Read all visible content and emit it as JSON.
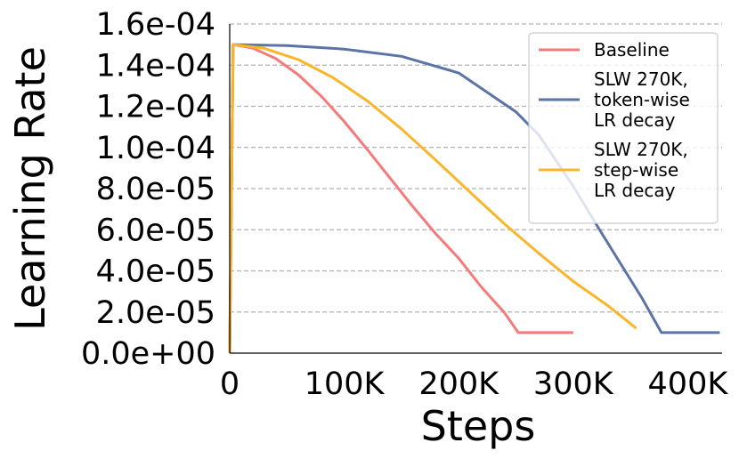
{
  "chart_data": {
    "type": "line",
    "xlabel": "Steps",
    "ylabel": "Learning Rate",
    "xlim": [
      0,
      430000
    ],
    "ylim": [
      0,
      0.00016
    ],
    "x_ticks": [
      0,
      100000,
      200000,
      300000,
      400000
    ],
    "x_tick_labels": [
      "0",
      "100K",
      "200K",
      "300K",
      "400K"
    ],
    "y_ticks": [
      0,
      2e-05,
      4e-05,
      6e-05,
      8e-05,
      0.0001,
      0.00012,
      0.00014,
      0.00016
    ],
    "y_tick_labels": [
      "0.0e+00",
      "2.0e-05",
      "4.0e-05",
      "6.0e-05",
      "8.0e-05",
      "1.0e-04",
      "1.2e-04",
      "1.4e-04",
      "1.6e-04"
    ],
    "grid": "y-dashed",
    "legend_position": "top-right",
    "series": [
      {
        "name": "Baseline",
        "color": "#f77a7a",
        "x": [
          0,
          3000,
          20000,
          40000,
          60000,
          80000,
          100000,
          120000,
          140000,
          160000,
          180000,
          200000,
          220000,
          240000,
          252000,
          270000,
          300000
        ],
        "y": [
          0,
          0.00015,
          0.0001483,
          0.0001433,
          0.0001353,
          0.0001249,
          0.0001126,
          9.91e-05,
          8.51e-05,
          7.12e-05,
          5.8e-05,
          4.61e-05,
          3.2e-05,
          1.96e-05,
          1e-05,
          1e-05,
          1e-05
        ]
      },
      {
        "name": "SLW 270K, token-wise LR decay",
        "color": "#5a74a8",
        "x": [
          0,
          3000,
          50000,
          100000,
          150000,
          200000,
          250000,
          270000,
          300000,
          320000,
          340000,
          360000,
          377000,
          400000,
          428000
        ],
        "y": [
          0,
          0.00015,
          0.0001495,
          0.0001478,
          0.0001443,
          0.0001362,
          0.0001173,
          0.000106,
          8.12e-05,
          6.27e-05,
          4.47e-05,
          2.68e-05,
          1e-05,
          1e-05,
          1e-05
        ]
      },
      {
        "name": "SLW 270K, step-wise LR decay",
        "color": "#fbb52b",
        "x": [
          0,
          3000,
          30000,
          60000,
          90000,
          120000,
          150000,
          180000,
          210000,
          240000,
          270000,
          300000,
          330000,
          355000
        ],
        "y": [
          0,
          0.00015,
          0.0001482,
          0.0001427,
          0.000134,
          0.0001227,
          0.000109,
          9.38e-05,
          7.82e-05,
          6.28e-05,
          4.85e-05,
          3.49e-05,
          2.32e-05,
          1.21e-05
        ]
      }
    ]
  }
}
